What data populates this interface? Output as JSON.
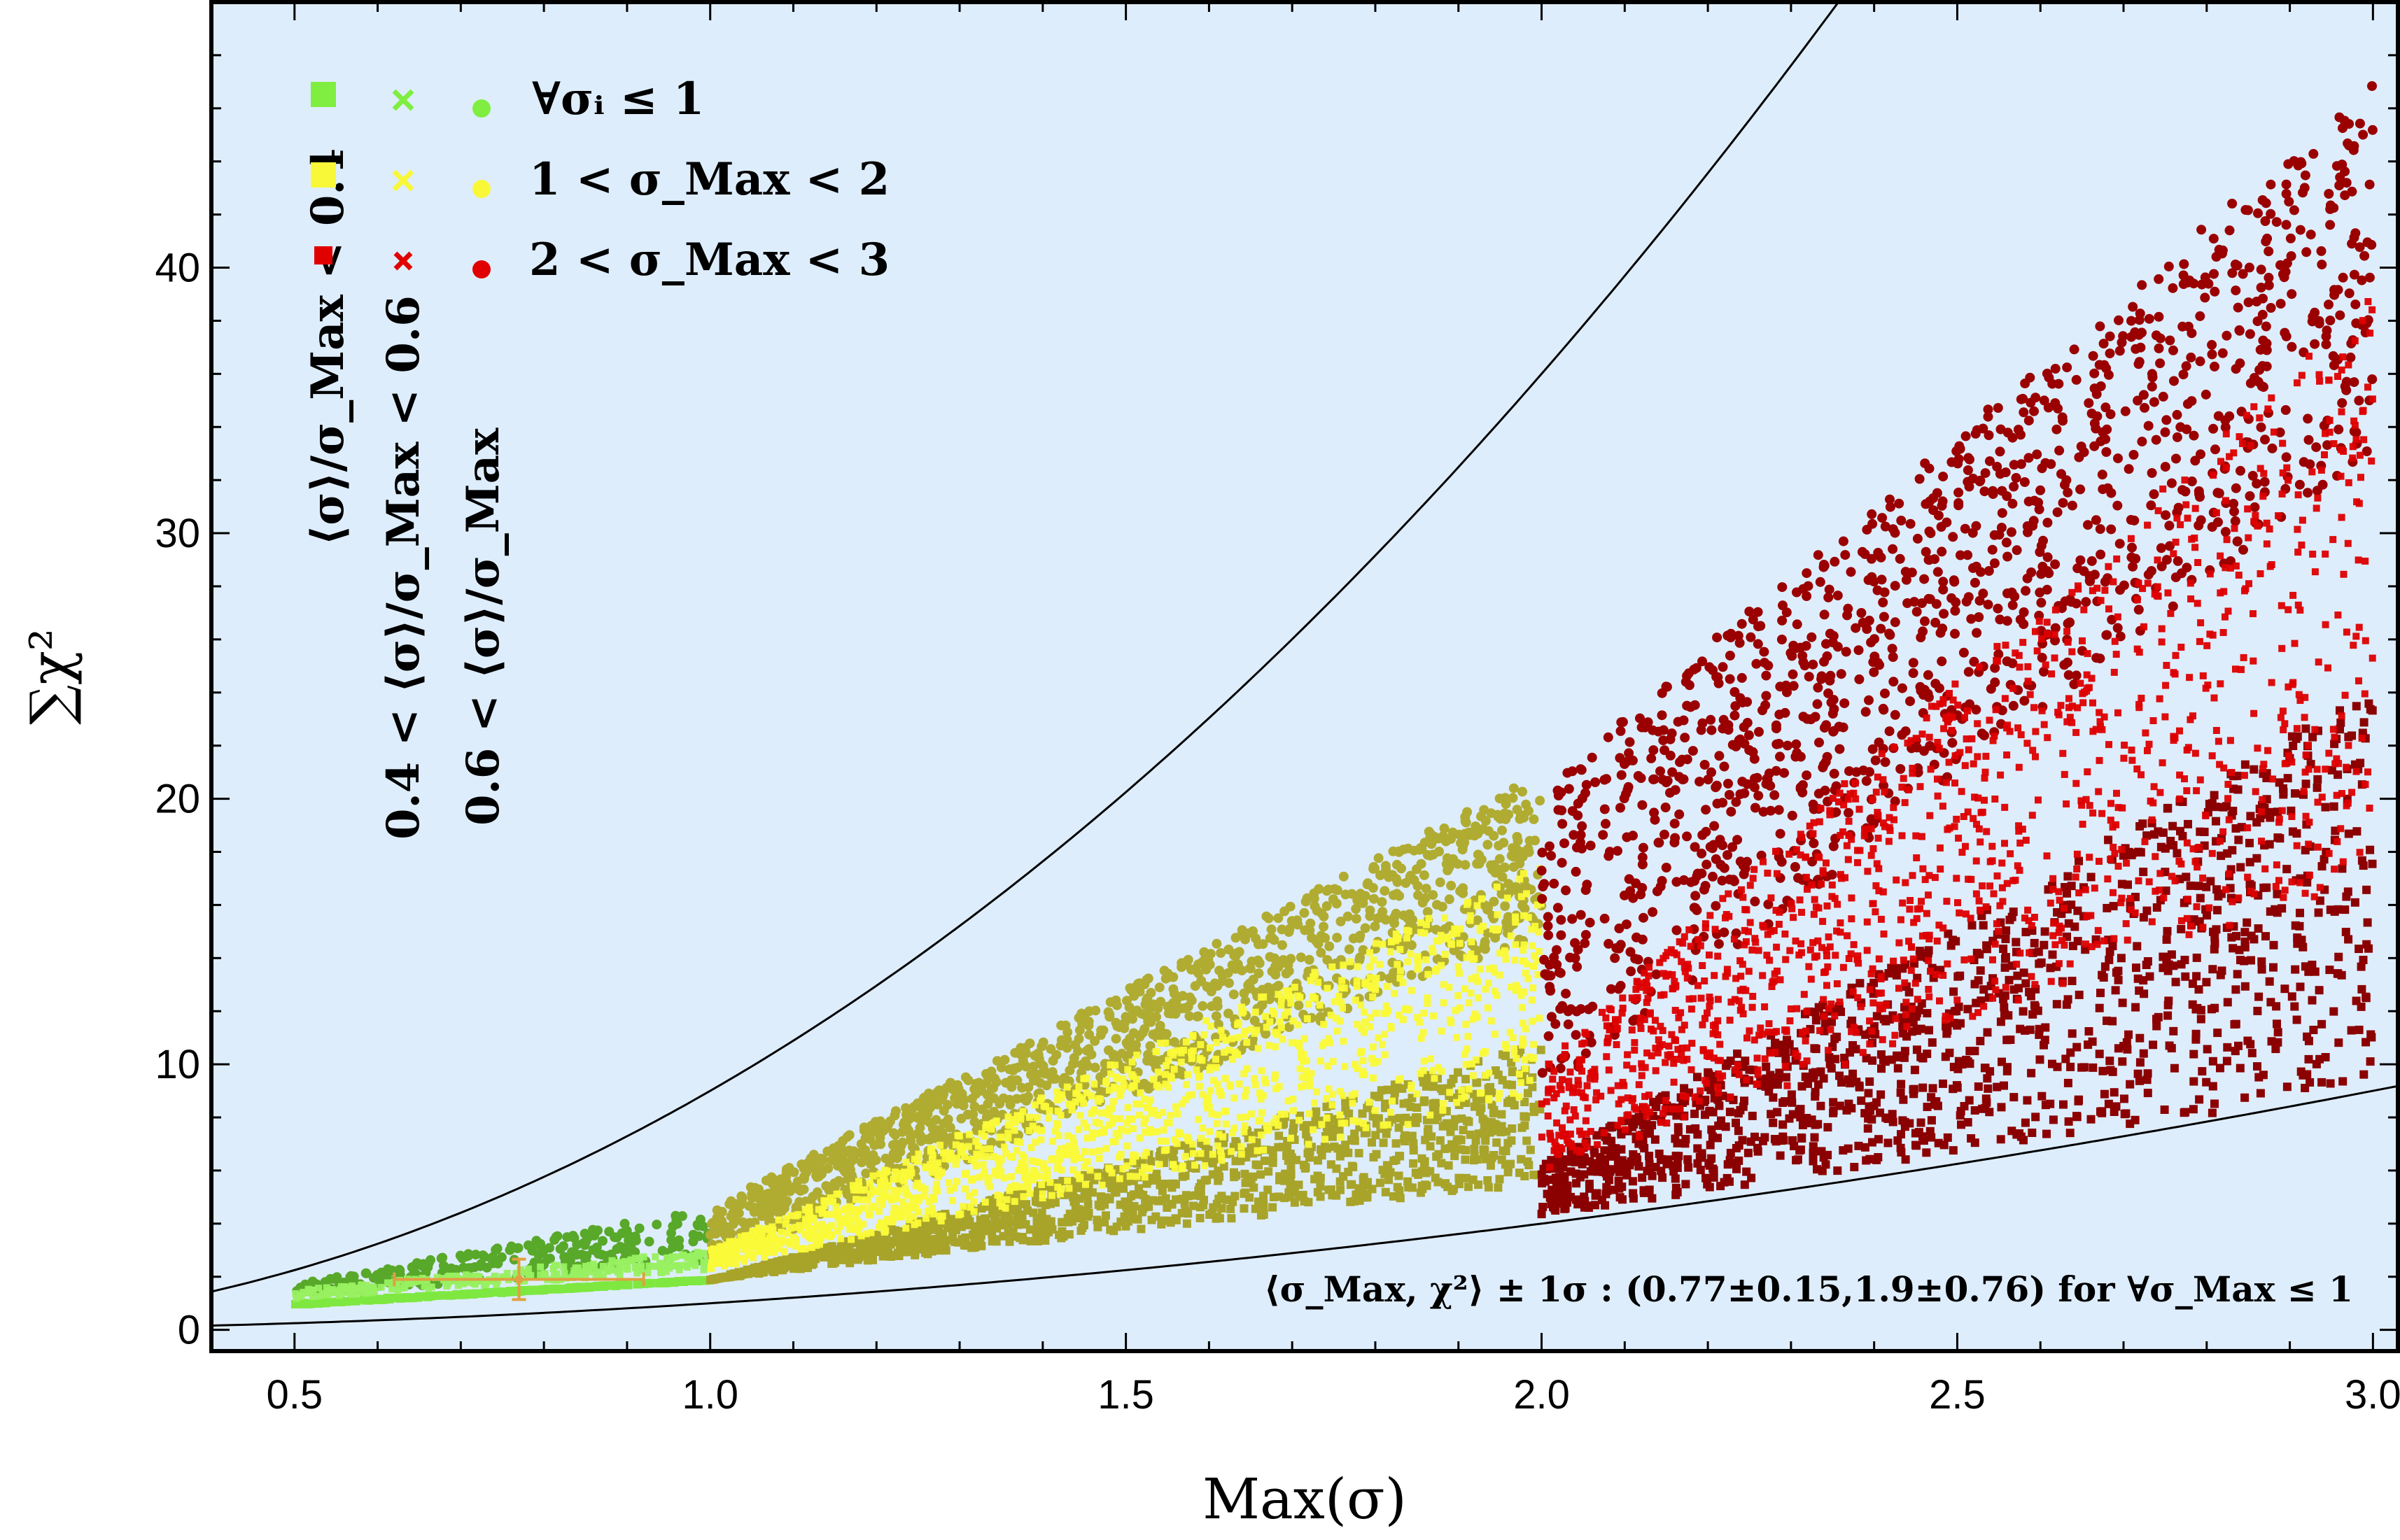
{
  "chart_data": {
    "type": "scatter",
    "title": "",
    "xlabel": "Max(σ)",
    "ylabel": "∑χ²",
    "xlim": [
      0.4,
      3.03
    ],
    "ylim": [
      -0.8,
      50
    ],
    "x_ticks": [
      "0.5",
      "1.0",
      "1.5",
      "2.0",
      "2.5",
      "3.0"
    ],
    "y_ticks": [
      "0",
      "10",
      "20",
      "30",
      "40"
    ],
    "grid": false,
    "background_color": "#deedfc",
    "legend_position": "top-left",
    "legend_rows": [
      {
        "label": "∀σᵢ ≤ 1",
        "color": "#80ee40"
      },
      {
        "label": "1 < σ_Max < 2",
        "color": "#f8f838"
      },
      {
        "label": "2 < σ_Max < 3",
        "color": "#e00000"
      }
    ],
    "legend_marker_shapes": [
      "square",
      "cross",
      "circle"
    ],
    "legend_marker_labels": [
      "⟨σ⟩/σ_Max < 0.4",
      "0.4 < ⟨σ⟩/σ_Max < 0.6",
      "0.6 < ⟨σ⟩/σ_Max"
    ],
    "regions": [
      {
        "label": "∀σᵢ ≤ 1",
        "x_range": [
          0.5,
          1.0
        ],
        "y_low": [
          1.0,
          1.9
        ],
        "y_mid_high": [
          1.5,
          3.0
        ],
        "y_high": [
          1.7,
          4.6
        ],
        "colors": {
          "square": "#7ee840",
          "cross": "#98f060",
          "circle": "#58a82a"
        }
      },
      {
        "label": "1 < σ_Max < 2",
        "x_range": [
          1.0,
          2.0
        ],
        "y_low": [
          1.9,
          5.5
        ],
        "y_mid_high": [
          3.0,
          17.5
        ],
        "y_high": [
          4.6,
          21.0
        ],
        "colors": {
          "square": "#a8a42a",
          "cross": "#fafa38",
          "circle": "#b0ac32"
        }
      },
      {
        "label": "2 < σ_Max < 3",
        "x_range": [
          2.0,
          3.0
        ],
        "y_low": [
          4.3,
          9.0
        ],
        "y_mid_high": [
          10.0,
          39.0
        ],
        "y_high": [
          20.5,
          47.0
        ],
        "colors": {
          "square": "#8b0000",
          "cross": "#dd0000",
          "circle": "#9a0000"
        }
      }
    ],
    "curves": [
      {
        "name": "upper bound",
        "formula": "9x²",
        "color": "#000000"
      },
      {
        "name": "lower bound",
        "formula": "x²",
        "color": "#000000"
      }
    ],
    "mean_point": {
      "x": 0.77,
      "x_err": 0.15,
      "y": 1.9,
      "y_err": 0.76,
      "color": "#e0a040"
    },
    "annotation": "⟨σ_Max, χ²⟩ ± 1σ : (0.77±0.15,1.9±0.76) for ∀σ_Max ≤ 1"
  }
}
